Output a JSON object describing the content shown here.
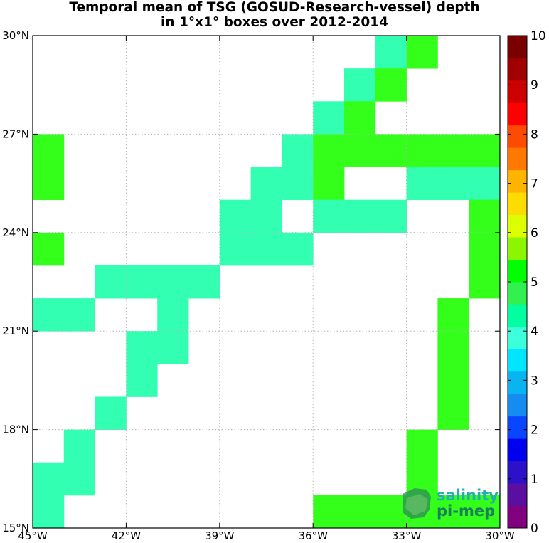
{
  "chart_data": {
    "type": "heatmap",
    "title_lines": [
      "Temporal mean of TSG (GOSUD-Research-vessel) depth",
      "in 1°x1° boxes over 2012-2014"
    ],
    "x_ticks": [
      "45°W",
      "42°W",
      "39°W",
      "36°W",
      "33°W",
      "30°W"
    ],
    "y_ticks": [
      "15°N",
      "18°N",
      "21°N",
      "24°N",
      "27°N",
      "30°N"
    ],
    "xlim": [
      -45,
      -30
    ],
    "ylim": [
      15,
      30
    ],
    "grid": true,
    "colorbar": {
      "min": 0,
      "max": 10,
      "ticks": [
        "0",
        "1",
        "2",
        "3",
        "4",
        "5",
        "6",
        "7",
        "8",
        "9",
        "10"
      ],
      "colors": [
        "#800080",
        "#5a0fa0",
        "#2b12c8",
        "#0000f0",
        "#0a46ff",
        "#148cf0",
        "#0ab4f0",
        "#00e6ff",
        "#3cffdc",
        "#00ffa0",
        "#32f050",
        "#00ff00",
        "#8cf500",
        "#dcff00",
        "#ffdc00",
        "#ffb400",
        "#ff7800",
        "#ff4b00",
        "#ff0000",
        "#cd0000",
        "#a00000",
        "#7a0000"
      ]
    },
    "colors": {
      "4": "#33ffb3",
      "5": "#33ff1a"
    },
    "cells": [
      {
        "lon": -34,
        "lat": 29,
        "value": 4
      },
      {
        "lon": -33,
        "lat": 29,
        "value": 5
      },
      {
        "lon": -35,
        "lat": 28,
        "value": 4
      },
      {
        "lon": -34,
        "lat": 28,
        "value": 5
      },
      {
        "lon": -36,
        "lat": 27,
        "value": 4
      },
      {
        "lon": -35,
        "lat": 27,
        "value": 5
      },
      {
        "lon": -45,
        "lat": 26,
        "value": 5
      },
      {
        "lon": -37,
        "lat": 26,
        "value": 4
      },
      {
        "lon": -36,
        "lat": 26,
        "value": 5
      },
      {
        "lon": -35,
        "lat": 26,
        "value": 5
      },
      {
        "lon": -34,
        "lat": 26,
        "value": 5
      },
      {
        "lon": -33,
        "lat": 26,
        "value": 5
      },
      {
        "lon": -32,
        "lat": 26,
        "value": 5
      },
      {
        "lon": -31,
        "lat": 26,
        "value": 5
      },
      {
        "lon": -45,
        "lat": 25,
        "value": 5
      },
      {
        "lon": -38,
        "lat": 25,
        "value": 4
      },
      {
        "lon": -37,
        "lat": 25,
        "value": 4
      },
      {
        "lon": -36,
        "lat": 25,
        "value": 5
      },
      {
        "lon": -33,
        "lat": 25,
        "value": 4
      },
      {
        "lon": -32,
        "lat": 25,
        "value": 4
      },
      {
        "lon": -31,
        "lat": 25,
        "value": 4
      },
      {
        "lon": -39,
        "lat": 24,
        "value": 4
      },
      {
        "lon": -38,
        "lat": 24,
        "value": 4
      },
      {
        "lon": -36,
        "lat": 24,
        "value": 4
      },
      {
        "lon": -35,
        "lat": 24,
        "value": 4
      },
      {
        "lon": -34,
        "lat": 24,
        "value": 4
      },
      {
        "lon": -31,
        "lat": 24,
        "value": 5
      },
      {
        "lon": -45,
        "lat": 23,
        "value": 5
      },
      {
        "lon": -39,
        "lat": 23,
        "value": 4
      },
      {
        "lon": -38,
        "lat": 23,
        "value": 4
      },
      {
        "lon": -37,
        "lat": 23,
        "value": 4
      },
      {
        "lon": -31,
        "lat": 23,
        "value": 5
      },
      {
        "lon": -43,
        "lat": 22,
        "value": 4
      },
      {
        "lon": -42,
        "lat": 22,
        "value": 4
      },
      {
        "lon": -41,
        "lat": 22,
        "value": 4
      },
      {
        "lon": -40,
        "lat": 22,
        "value": 4
      },
      {
        "lon": -31,
        "lat": 22,
        "value": 5
      },
      {
        "lon": -45,
        "lat": 21,
        "value": 4
      },
      {
        "lon": -44,
        "lat": 21,
        "value": 4
      },
      {
        "lon": -41,
        "lat": 21,
        "value": 4
      },
      {
        "lon": -32,
        "lat": 21,
        "value": 5
      },
      {
        "lon": -42,
        "lat": 20,
        "value": 4
      },
      {
        "lon": -41,
        "lat": 20,
        "value": 4
      },
      {
        "lon": -32,
        "lat": 20,
        "value": 5
      },
      {
        "lon": -42,
        "lat": 19,
        "value": 4
      },
      {
        "lon": -32,
        "lat": 19,
        "value": 5
      },
      {
        "lon": -43,
        "lat": 18,
        "value": 4
      },
      {
        "lon": -32,
        "lat": 18,
        "value": 5
      },
      {
        "lon": -44,
        "lat": 17,
        "value": 4
      },
      {
        "lon": -33,
        "lat": 17,
        "value": 5
      },
      {
        "lon": -45,
        "lat": 16,
        "value": 4
      },
      {
        "lon": -44,
        "lat": 16,
        "value": 4
      },
      {
        "lon": -33,
        "lat": 16,
        "value": 5
      },
      {
        "lon": -45,
        "lat": 15,
        "value": 4
      },
      {
        "lon": -36,
        "lat": 15,
        "value": 5
      },
      {
        "lon": -35,
        "lat": 15,
        "value": 5
      },
      {
        "lon": -34,
        "lat": 15,
        "value": 5
      },
      {
        "lon": -33,
        "lat": 15,
        "value": 5
      },
      {
        "lon": -32,
        "lat": 15,
        "value": 5
      },
      {
        "lon": -31,
        "lat": 15,
        "value": 5
      }
    ]
  },
  "logo": {
    "line1": "salinity",
    "line2": "pi-mep"
  }
}
